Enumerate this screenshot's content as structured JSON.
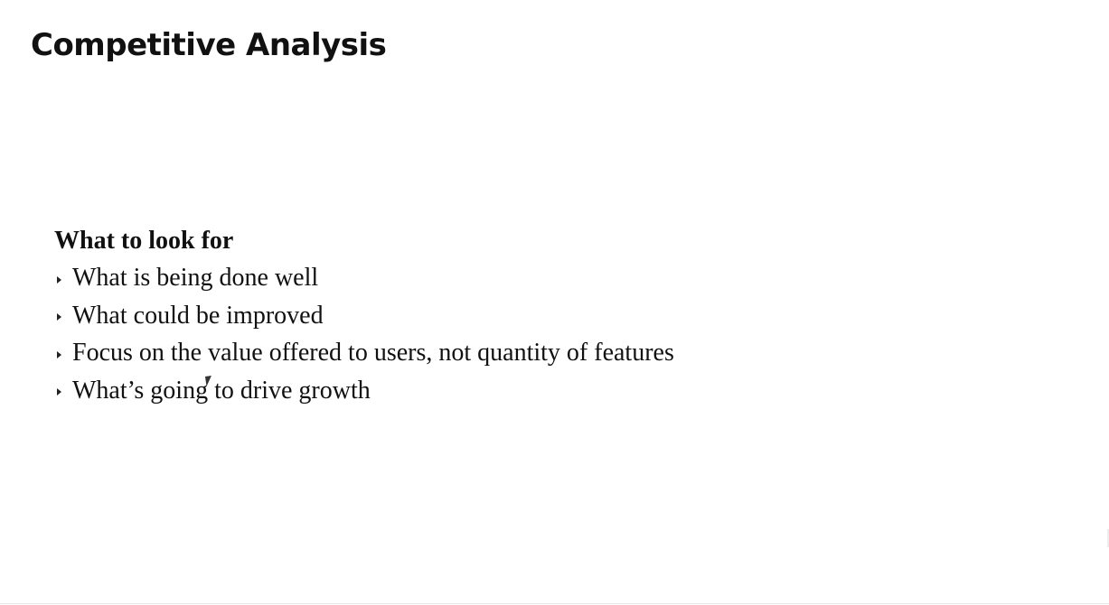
{
  "slide": {
    "title": "Competitive Analysis",
    "section_heading": "What to look for",
    "bullets": [
      "What is being done well",
      "What could be improved",
      "Focus on the value offered to users, not quantity of features",
      "What’s going to drive growth"
    ],
    "bullet_icon": "triangle-right-icon",
    "cursor_icon": "mouse-pointer-icon"
  }
}
